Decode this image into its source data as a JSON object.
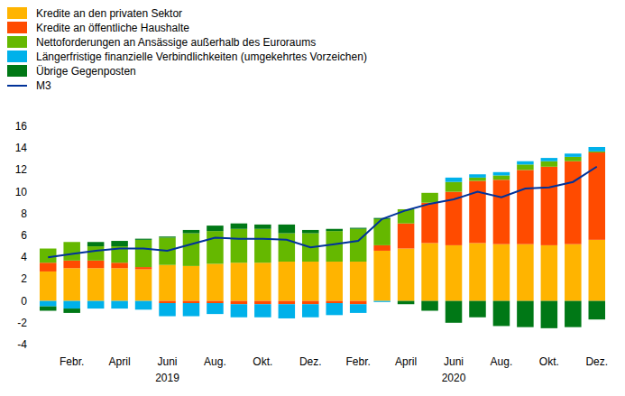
{
  "chart_data": {
    "type": "bar",
    "stacked": true,
    "grid": false,
    "legend": "top-left",
    "categories": [
      null,
      "Febr.",
      null,
      "April",
      null,
      "Juni",
      null,
      "Aug.",
      null,
      "Okt.",
      null,
      "Dez.",
      null,
      "Febr.",
      null,
      "April",
      null,
      "Juni",
      null,
      "Aug.",
      null,
      "Okt.",
      null,
      "Dez."
    ],
    "annotations": [
      {
        "text": "2019",
        "x": 5
      },
      {
        "text": "2020",
        "x": 17
      }
    ],
    "ylim": [
      -4,
      16
    ],
    "yticks": [
      -4,
      -2,
      0,
      2,
      4,
      6,
      8,
      10,
      12,
      14,
      16
    ],
    "series": [
      {
        "name": "Kredite an den privaten Sektor",
        "color": "#ffb400",
        "type": "bar",
        "values": [
          2.7,
          3.0,
          3.0,
          3.0,
          2.9,
          3.3,
          3.2,
          3.4,
          3.5,
          3.5,
          3.6,
          3.6,
          3.6,
          3.6,
          4.6,
          4.8,
          5.3,
          5.1,
          5.3,
          5.2,
          5.2,
          5.1,
          5.2,
          5.6
        ]
      },
      {
        "name": "Kredite an öffentliche Haushalte",
        "color": "#ff4b00",
        "type": "bar",
        "values": [
          0.8,
          0.7,
          0.7,
          0.5,
          0.2,
          -0.2,
          -0.2,
          -0.2,
          -0.3,
          -0.3,
          -0.3,
          -0.3,
          -0.2,
          -0.3,
          0.5,
          2.3,
          3.7,
          4.9,
          5.7,
          5.9,
          6.8,
          7.2,
          7.6,
          8.0
        ]
      },
      {
        "name": "Nettoforderungen an Ansässige außerhalb des Euroraums",
        "color": "#65b800",
        "type": "bar",
        "values": [
          1.3,
          1.7,
          1.3,
          1.5,
          2.5,
          2.5,
          3.0,
          3.0,
          3.1,
          3.1,
          2.6,
          2.6,
          2.8,
          3.0,
          2.4,
          1.3,
          0.9,
          0.9,
          0.3,
          0.4,
          0.5,
          0.5,
          0.4,
          0.1
        ]
      },
      {
        "name": "Längerfristige finanzielle Verbindlichkeiten (umgekehrtes Vorzeichen)",
        "color": "#00b1ea",
        "type": "bar",
        "values": [
          -0.5,
          -0.7,
          -0.7,
          -0.7,
          -0.8,
          -1.2,
          -1.2,
          -1.0,
          -1.2,
          -1.2,
          -1.3,
          -1.2,
          -1.1,
          -0.8,
          -0.1,
          0.0,
          0.0,
          0.4,
          0.3,
          0.3,
          0.3,
          0.3,
          0.3,
          0.4
        ]
      },
      {
        "name": "Übrige Gegenposten",
        "color": "#007816",
        "type": "bar",
        "values": [
          -0.4,
          -0.4,
          0.4,
          0.5,
          0.1,
          0.1,
          0.3,
          0.5,
          0.5,
          0.4,
          0.8,
          0.3,
          0.2,
          0.1,
          0.1,
          -0.3,
          -0.9,
          -2.0,
          -1.5,
          -2.3,
          -2.4,
          -2.5,
          -2.4,
          -1.7
        ]
      },
      {
        "name": "M3",
        "color": "#003299",
        "type": "line",
        "values": [
          4.0,
          4.3,
          4.6,
          4.8,
          4.8,
          4.6,
          5.2,
          5.8,
          5.7,
          5.7,
          5.6,
          4.9,
          5.2,
          5.5,
          7.5,
          8.3,
          8.9,
          9.3,
          10.0,
          9.5,
          10.3,
          10.4,
          10.9,
          12.3
        ]
      }
    ]
  }
}
